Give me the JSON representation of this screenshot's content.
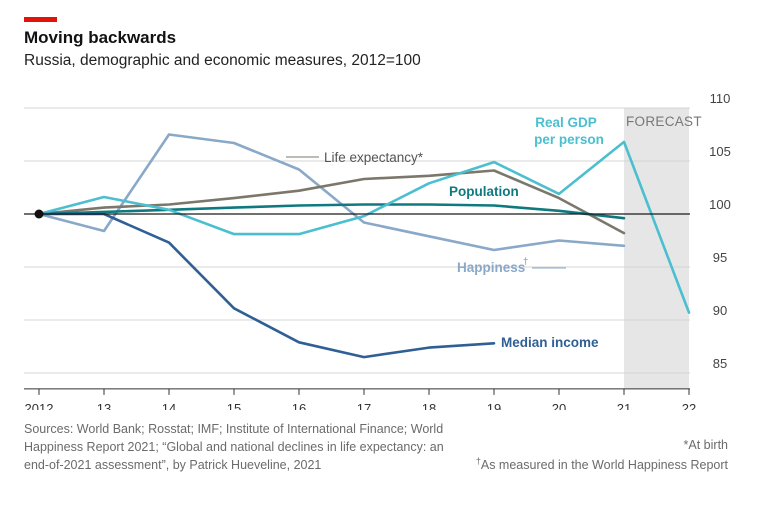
{
  "title": "Moving backwards",
  "subtitle": "Russia, demographic and economic measures, 2012=100",
  "forecast_label": "FORECAST",
  "sources": "Sources: World Bank; Rosstat; IMF; Institute of International Finance; World Happiness Report 2021; “Global and national declines in life expectancy: an end-of-2021 assessment”, by Patrick Hueveline, 2021",
  "footnote_star": "*At birth",
  "footnote_dagger_mark": "†",
  "footnote_dagger_text": "As measured in the World Happiness Report",
  "colors": {
    "accent_bar": "#e3120b",
    "life_expectancy": "#7b776b",
    "population": "#0e7a7f",
    "real_gdp": "#4bbfcf",
    "happiness": "#8aa8c8",
    "median_income": "#2f5f94",
    "forecast_band": "#e6e6e6"
  },
  "chart_data": {
    "type": "line",
    "x": [
      2012,
      2013,
      2014,
      2015,
      2016,
      2017,
      2018,
      2019,
      2020,
      2021,
      2022
    ],
    "x_tick_labels": [
      "2012",
      "13",
      "14",
      "15",
      "16",
      "17",
      "18",
      "19",
      "20",
      "21",
      "22"
    ],
    "y_ticks": [
      85,
      90,
      95,
      100,
      105,
      110
    ],
    "ylim": [
      83.5,
      110
    ],
    "baseline": 100,
    "forecast_range": [
      2021,
      2022
    ],
    "grid": "horizontal",
    "y_axis_side": "right",
    "series": [
      {
        "name": "Life expectancy*",
        "color": "#7b776b",
        "x": [
          2012,
          2013,
          2014,
          2015,
          2016,
          2017,
          2018,
          2019,
          2020,
          2021
        ],
        "values": [
          100,
          100.6,
          100.9,
          101.5,
          102.2,
          103.3,
          103.6,
          104.1,
          101.5,
          98.2
        ]
      },
      {
        "name": "Population",
        "color": "#0e7a7f",
        "x": [
          2012,
          2013,
          2014,
          2015,
          2016,
          2017,
          2018,
          2019,
          2020,
          2021
        ],
        "values": [
          100,
          100.2,
          100.4,
          100.6,
          100.8,
          100.9,
          100.9,
          100.8,
          100.3,
          99.6
        ]
      },
      {
        "name": "Real GDP per person",
        "name_lines": [
          "Real GDP",
          "per person"
        ],
        "color": "#4bbfcf",
        "x": [
          2012,
          2013,
          2014,
          2015,
          2016,
          2017,
          2018,
          2019,
          2020,
          2021,
          2022
        ],
        "values": [
          100,
          101.6,
          100.4,
          98.1,
          98.1,
          99.8,
          102.9,
          104.9,
          101.9,
          106.8,
          90.7
        ]
      },
      {
        "name": "Happiness",
        "dagger": "†",
        "color": "#8aa8c8",
        "x": [
          2012,
          2013,
          2014,
          2015,
          2016,
          2017,
          2018,
          2019,
          2020,
          2021
        ],
        "values": [
          100,
          98.4,
          107.5,
          106.7,
          104.2,
          99.2,
          97.9,
          96.6,
          97.5,
          97.0
        ]
      },
      {
        "name": "Median income",
        "color": "#2f5f94",
        "x": [
          2012,
          2013,
          2014,
          2015,
          2016,
          2017,
          2018,
          2019
        ],
        "values": [
          100,
          100,
          97.3,
          91.1,
          87.9,
          86.5,
          87.4,
          87.8
        ]
      }
    ]
  }
}
